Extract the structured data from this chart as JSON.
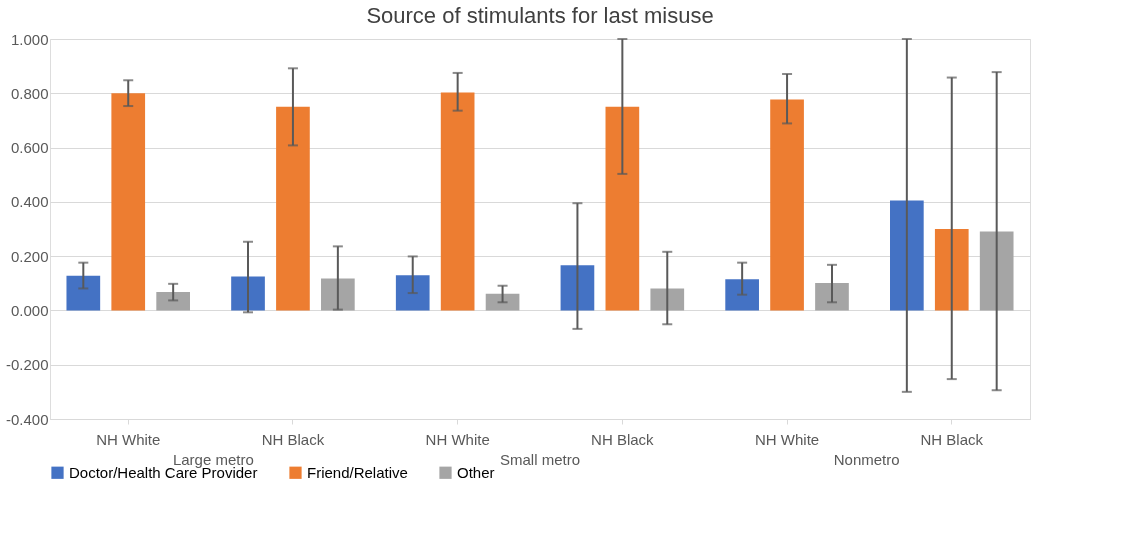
{
  "chart_data": {
    "type": "bar",
    "title": "Source of stimulants for last misuse",
    "categories": [
      "NH White",
      "NH Black",
      "NH White",
      "NH Black",
      "NH White",
      "NH Black"
    ],
    "annotations": [
      "Large metro",
      "Small metro",
      "Nonmetro"
    ],
    "series": [
      {
        "name": "Doctor/Health Care Provider",
        "color": "#4472c4",
        "values": [
          0.128,
          0.125,
          0.13,
          0.166,
          0.115,
          0.405
        ],
        "errors": [
          [
            0.081,
            0.176
          ],
          [
            -0.007,
            0.253
          ],
          [
            0.064,
            0.199
          ],
          [
            -0.068,
            0.395
          ],
          [
            0.058,
            0.176
          ],
          [
            -0.3,
            1.0
          ]
        ]
      },
      {
        "name": "Friend/Relative",
        "color": "#ed7d31",
        "values": [
          0.8,
          0.75,
          0.803,
          0.75,
          0.777,
          0.3
        ],
        "errors": [
          [
            0.753,
            0.848
          ],
          [
            0.608,
            0.892
          ],
          [
            0.736,
            0.875
          ],
          [
            0.503,
            1.0
          ],
          [
            0.689,
            0.871
          ],
          [
            -0.253,
            0.858
          ]
        ]
      },
      {
        "name": "Other",
        "color": "#a5a5a5",
        "values": [
          0.068,
          0.118,
          0.061,
          0.081,
          0.101,
          0.291
        ],
        "errors": [
          [
            0.037,
            0.098
          ],
          [
            0.003,
            0.236
          ],
          [
            0.03,
            0.091
          ],
          [
            -0.051,
            0.216
          ],
          [
            0.03,
            0.168
          ],
          [
            -0.294,
            0.878
          ]
        ]
      }
    ],
    "ylim": [
      -0.4,
      1.0
    ],
    "yticks": [
      {
        "value": -0.4,
        "label": "-0.400"
      },
      {
        "value": -0.2,
        "label": "-0.200"
      },
      {
        "value": 0,
        "label": "0.000"
      },
      {
        "value": 0.2,
        "label": "0.200"
      },
      {
        "value": 0.4,
        "label": "0.400"
      },
      {
        "value": 0.6,
        "label": "0.600"
      },
      {
        "value": 0.8,
        "label": "0.800"
      },
      {
        "value": 1.0,
        "label": "1.000"
      }
    ],
    "grid": "y",
    "legend": "bottom"
  }
}
